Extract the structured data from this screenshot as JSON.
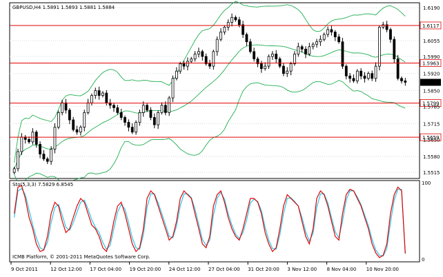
{
  "header": {
    "symbol_info": "GBPUSD,H4  1.5891 1.5893 1.5881 1.5884"
  },
  "price_axis": {
    "ticks": [
      "1.6190",
      "1.6055",
      "1.5990",
      "1.5920",
      "1.5850",
      "1.5785",
      "1.5715",
      "1.5650",
      "1.5580",
      "1.5515"
    ],
    "current_price": "1.5884"
  },
  "levels": [
    {
      "label": "1.6117",
      "value": 1.6117
    },
    {
      "label": "1.5963",
      "value": 1.5963
    },
    {
      "label": "1.5799",
      "value": 1.5799
    },
    {
      "label": "1.5659",
      "value": 1.5659
    }
  ],
  "stochastic": {
    "label": "Sto(5,3,3) 7.5829 6.8545",
    "ticks": [
      "100",
      "0"
    ]
  },
  "copyright": "ICMB Platform, © 2001-2011 MetaQuotes Software Corp.",
  "time_axis": [
    "9 Oct 2011",
    "12 Oct 12:00",
    "17 Oct 04:00",
    "19 Oct 20:00",
    "24 Oct 12:00",
    "27 Oct 04:00",
    "31 Oct 20:00",
    "3 Nov 12:00",
    "8 Nov 04:00",
    "10 Nov 20:00"
  ],
  "colors": {
    "level_line": "#e00000",
    "bands": "#1fae4f",
    "stoch_main": "#e00000",
    "stoch_signal": "#29c6e6",
    "candles": "#000000"
  },
  "chart_data": {
    "type": "candlestick",
    "symbol": "GBPUSD",
    "timeframe": "H4",
    "ylim": [
      1.549,
      1.621
    ],
    "close": [
      1.553,
      1.56,
      1.566,
      1.565,
      1.564,
      1.568,
      1.563,
      1.559,
      1.557,
      1.556,
      1.561,
      1.57,
      1.576,
      1.58,
      1.577,
      1.573,
      1.569,
      1.568,
      1.57,
      1.576,
      1.58,
      1.583,
      1.585,
      1.583,
      1.584,
      1.58,
      1.579,
      1.578,
      1.576,
      1.574,
      1.572,
      1.57,
      1.568,
      1.572,
      1.576,
      1.579,
      1.577,
      1.574,
      1.571,
      1.576,
      1.579,
      1.576,
      1.582,
      1.59,
      1.593,
      1.596,
      1.595,
      1.597,
      1.598,
      1.6,
      1.601,
      1.599,
      1.596,
      1.595,
      1.601,
      1.606,
      1.609,
      1.611,
      1.613,
      1.615,
      1.614,
      1.612,
      1.608,
      1.605,
      1.601,
      1.598,
      1.596,
      1.594,
      1.595,
      1.599,
      1.6,
      1.598,
      1.595,
      1.592,
      1.593,
      1.596,
      1.6,
      1.603,
      1.602,
      1.6,
      1.603,
      1.604,
      1.605,
      1.606,
      1.608,
      1.61,
      1.609,
      1.607,
      1.605,
      1.595,
      1.591,
      1.59,
      1.589,
      1.593,
      1.591,
      1.59,
      1.592,
      1.59,
      1.595,
      1.611,
      1.612,
      1.61,
      1.606,
      1.598,
      1.59,
      1.589,
      1.5884
    ],
    "stoch_main": [
      60,
      95,
      97,
      80,
      55,
      40,
      20,
      10,
      12,
      30,
      60,
      75,
      70,
      50,
      35,
      40,
      55,
      70,
      80,
      75,
      60,
      45,
      40,
      30,
      15,
      10,
      25,
      50,
      70,
      75,
      60,
      40,
      20,
      10,
      15,
      40,
      80,
      90,
      85,
      70,
      55,
      40,
      25,
      30,
      50,
      80,
      90,
      85,
      80,
      60,
      40,
      20,
      15,
      30,
      70,
      85,
      90,
      75,
      55,
      40,
      30,
      25,
      40,
      60,
      80,
      80,
      75,
      60,
      35,
      20,
      10,
      15,
      40,
      70,
      85,
      80,
      75,
      70,
      50,
      30,
      20,
      40,
      80,
      90,
      85,
      70,
      50,
      30,
      25,
      60,
      85,
      92,
      90,
      80,
      70,
      55,
      40,
      20,
      8,
      2,
      5,
      20,
      60,
      85,
      95,
      90,
      7.58
    ],
    "stoch_signal": [
      55,
      90,
      93,
      85,
      65,
      45,
      28,
      15,
      12,
      22,
      48,
      68,
      72,
      58,
      42,
      38,
      48,
      62,
      75,
      78,
      66,
      52,
      42,
      35,
      22,
      13,
      18,
      40,
      62,
      72,
      66,
      48,
      28,
      15,
      13,
      32,
      68,
      86,
      86,
      74,
      60,
      45,
      30,
      28,
      44,
      70,
      86,
      86,
      81,
      66,
      46,
      26,
      18,
      25,
      58,
      80,
      88,
      79,
      60,
      45,
      33,
      27,
      35,
      52,
      74,
      79,
      76,
      64,
      42,
      25,
      14,
      13,
      32,
      60,
      80,
      81,
      76,
      70,
      55,
      36,
      24,
      34,
      68,
      86,
      86,
      74,
      55,
      36,
      28,
      50,
      78,
      90,
      90,
      82,
      72,
      58,
      44,
      26,
      12,
      5,
      4,
      14,
      48,
      78,
      92,
      92,
      6.85
    ],
    "note_series": "close and stochastic values estimated from the chart"
  }
}
